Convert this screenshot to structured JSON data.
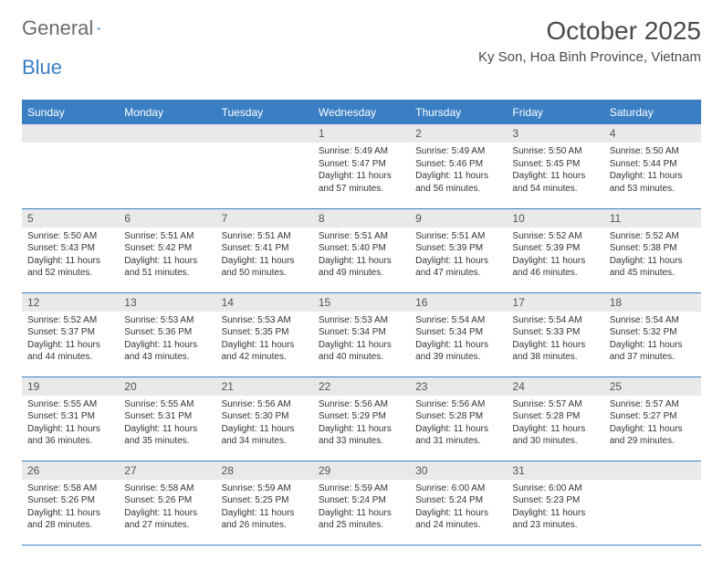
{
  "logo": {
    "text1": "General",
    "text2": "Blue"
  },
  "title": "October 2025",
  "location": "Ky Son, Hoa Binh Province, Vietnam",
  "colors": {
    "accent": "#3a7fc4",
    "header_text": "#ffffff",
    "daynum_bg": "#e9e9e9",
    "text": "#333333",
    "title_text": "#4a4a4a",
    "logo_gray": "#6b6b6b"
  },
  "day_headers": [
    "Sunday",
    "Monday",
    "Tuesday",
    "Wednesday",
    "Thursday",
    "Friday",
    "Saturday"
  ],
  "weeks": [
    [
      null,
      null,
      null,
      {
        "n": "1",
        "sr": "5:49 AM",
        "ss": "5:47 PM",
        "dl": "11 hours and 57 minutes."
      },
      {
        "n": "2",
        "sr": "5:49 AM",
        "ss": "5:46 PM",
        "dl": "11 hours and 56 minutes."
      },
      {
        "n": "3",
        "sr": "5:50 AM",
        "ss": "5:45 PM",
        "dl": "11 hours and 54 minutes."
      },
      {
        "n": "4",
        "sr": "5:50 AM",
        "ss": "5:44 PM",
        "dl": "11 hours and 53 minutes."
      }
    ],
    [
      {
        "n": "5",
        "sr": "5:50 AM",
        "ss": "5:43 PM",
        "dl": "11 hours and 52 minutes."
      },
      {
        "n": "6",
        "sr": "5:51 AM",
        "ss": "5:42 PM",
        "dl": "11 hours and 51 minutes."
      },
      {
        "n": "7",
        "sr": "5:51 AM",
        "ss": "5:41 PM",
        "dl": "11 hours and 50 minutes."
      },
      {
        "n": "8",
        "sr": "5:51 AM",
        "ss": "5:40 PM",
        "dl": "11 hours and 49 minutes."
      },
      {
        "n": "9",
        "sr": "5:51 AM",
        "ss": "5:39 PM",
        "dl": "11 hours and 47 minutes."
      },
      {
        "n": "10",
        "sr": "5:52 AM",
        "ss": "5:39 PM",
        "dl": "11 hours and 46 minutes."
      },
      {
        "n": "11",
        "sr": "5:52 AM",
        "ss": "5:38 PM",
        "dl": "11 hours and 45 minutes."
      }
    ],
    [
      {
        "n": "12",
        "sr": "5:52 AM",
        "ss": "5:37 PM",
        "dl": "11 hours and 44 minutes."
      },
      {
        "n": "13",
        "sr": "5:53 AM",
        "ss": "5:36 PM",
        "dl": "11 hours and 43 minutes."
      },
      {
        "n": "14",
        "sr": "5:53 AM",
        "ss": "5:35 PM",
        "dl": "11 hours and 42 minutes."
      },
      {
        "n": "15",
        "sr": "5:53 AM",
        "ss": "5:34 PM",
        "dl": "11 hours and 40 minutes."
      },
      {
        "n": "16",
        "sr": "5:54 AM",
        "ss": "5:34 PM",
        "dl": "11 hours and 39 minutes."
      },
      {
        "n": "17",
        "sr": "5:54 AM",
        "ss": "5:33 PM",
        "dl": "11 hours and 38 minutes."
      },
      {
        "n": "18",
        "sr": "5:54 AM",
        "ss": "5:32 PM",
        "dl": "11 hours and 37 minutes."
      }
    ],
    [
      {
        "n": "19",
        "sr": "5:55 AM",
        "ss": "5:31 PM",
        "dl": "11 hours and 36 minutes."
      },
      {
        "n": "20",
        "sr": "5:55 AM",
        "ss": "5:31 PM",
        "dl": "11 hours and 35 minutes."
      },
      {
        "n": "21",
        "sr": "5:56 AM",
        "ss": "5:30 PM",
        "dl": "11 hours and 34 minutes."
      },
      {
        "n": "22",
        "sr": "5:56 AM",
        "ss": "5:29 PM",
        "dl": "11 hours and 33 minutes."
      },
      {
        "n": "23",
        "sr": "5:56 AM",
        "ss": "5:28 PM",
        "dl": "11 hours and 31 minutes."
      },
      {
        "n": "24",
        "sr": "5:57 AM",
        "ss": "5:28 PM",
        "dl": "11 hours and 30 minutes."
      },
      {
        "n": "25",
        "sr": "5:57 AM",
        "ss": "5:27 PM",
        "dl": "11 hours and 29 minutes."
      }
    ],
    [
      {
        "n": "26",
        "sr": "5:58 AM",
        "ss": "5:26 PM",
        "dl": "11 hours and 28 minutes."
      },
      {
        "n": "27",
        "sr": "5:58 AM",
        "ss": "5:26 PM",
        "dl": "11 hours and 27 minutes."
      },
      {
        "n": "28",
        "sr": "5:59 AM",
        "ss": "5:25 PM",
        "dl": "11 hours and 26 minutes."
      },
      {
        "n": "29",
        "sr": "5:59 AM",
        "ss": "5:24 PM",
        "dl": "11 hours and 25 minutes."
      },
      {
        "n": "30",
        "sr": "6:00 AM",
        "ss": "5:24 PM",
        "dl": "11 hours and 24 minutes."
      },
      {
        "n": "31",
        "sr": "6:00 AM",
        "ss": "5:23 PM",
        "dl": "11 hours and 23 minutes."
      },
      null
    ]
  ],
  "labels": {
    "sunrise": "Sunrise:",
    "sunset": "Sunset:",
    "daylight": "Daylight:"
  }
}
